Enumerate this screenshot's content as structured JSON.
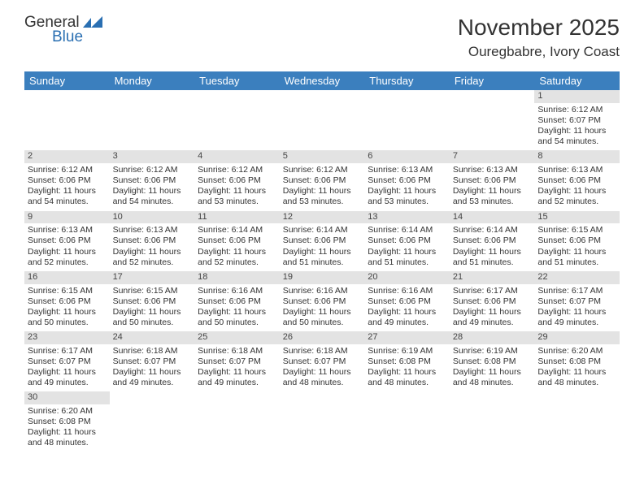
{
  "brand": {
    "general": "General",
    "blue": "Blue"
  },
  "title": "November 2025",
  "location": "Ouregbabre, Ivory Coast",
  "colors": {
    "header_bg": "#3b7fbe",
    "header_text": "#ffffff",
    "daynum_bg": "#e3e3e3",
    "text": "#333333",
    "logo_blue": "#2a6fb2"
  },
  "day_names": [
    "Sunday",
    "Monday",
    "Tuesday",
    "Wednesday",
    "Thursday",
    "Friday",
    "Saturday"
  ],
  "weeks": [
    [
      {
        "n": "",
        "lines": []
      },
      {
        "n": "",
        "lines": []
      },
      {
        "n": "",
        "lines": []
      },
      {
        "n": "",
        "lines": []
      },
      {
        "n": "",
        "lines": []
      },
      {
        "n": "",
        "lines": []
      },
      {
        "n": "1",
        "lines": [
          "Sunrise: 6:12 AM",
          "Sunset: 6:07 PM",
          "Daylight: 11 hours",
          "and 54 minutes."
        ]
      }
    ],
    [
      {
        "n": "2",
        "lines": [
          "Sunrise: 6:12 AM",
          "Sunset: 6:06 PM",
          "Daylight: 11 hours",
          "and 54 minutes."
        ]
      },
      {
        "n": "3",
        "lines": [
          "Sunrise: 6:12 AM",
          "Sunset: 6:06 PM",
          "Daylight: 11 hours",
          "and 54 minutes."
        ]
      },
      {
        "n": "4",
        "lines": [
          "Sunrise: 6:12 AM",
          "Sunset: 6:06 PM",
          "Daylight: 11 hours",
          "and 53 minutes."
        ]
      },
      {
        "n": "5",
        "lines": [
          "Sunrise: 6:12 AM",
          "Sunset: 6:06 PM",
          "Daylight: 11 hours",
          "and 53 minutes."
        ]
      },
      {
        "n": "6",
        "lines": [
          "Sunrise: 6:13 AM",
          "Sunset: 6:06 PM",
          "Daylight: 11 hours",
          "and 53 minutes."
        ]
      },
      {
        "n": "7",
        "lines": [
          "Sunrise: 6:13 AM",
          "Sunset: 6:06 PM",
          "Daylight: 11 hours",
          "and 53 minutes."
        ]
      },
      {
        "n": "8",
        "lines": [
          "Sunrise: 6:13 AM",
          "Sunset: 6:06 PM",
          "Daylight: 11 hours",
          "and 52 minutes."
        ]
      }
    ],
    [
      {
        "n": "9",
        "lines": [
          "Sunrise: 6:13 AM",
          "Sunset: 6:06 PM",
          "Daylight: 11 hours",
          "and 52 minutes."
        ]
      },
      {
        "n": "10",
        "lines": [
          "Sunrise: 6:13 AM",
          "Sunset: 6:06 PM",
          "Daylight: 11 hours",
          "and 52 minutes."
        ]
      },
      {
        "n": "11",
        "lines": [
          "Sunrise: 6:14 AM",
          "Sunset: 6:06 PM",
          "Daylight: 11 hours",
          "and 52 minutes."
        ]
      },
      {
        "n": "12",
        "lines": [
          "Sunrise: 6:14 AM",
          "Sunset: 6:06 PM",
          "Daylight: 11 hours",
          "and 51 minutes."
        ]
      },
      {
        "n": "13",
        "lines": [
          "Sunrise: 6:14 AM",
          "Sunset: 6:06 PM",
          "Daylight: 11 hours",
          "and 51 minutes."
        ]
      },
      {
        "n": "14",
        "lines": [
          "Sunrise: 6:14 AM",
          "Sunset: 6:06 PM",
          "Daylight: 11 hours",
          "and 51 minutes."
        ]
      },
      {
        "n": "15",
        "lines": [
          "Sunrise: 6:15 AM",
          "Sunset: 6:06 PM",
          "Daylight: 11 hours",
          "and 51 minutes."
        ]
      }
    ],
    [
      {
        "n": "16",
        "lines": [
          "Sunrise: 6:15 AM",
          "Sunset: 6:06 PM",
          "Daylight: 11 hours",
          "and 50 minutes."
        ]
      },
      {
        "n": "17",
        "lines": [
          "Sunrise: 6:15 AM",
          "Sunset: 6:06 PM",
          "Daylight: 11 hours",
          "and 50 minutes."
        ]
      },
      {
        "n": "18",
        "lines": [
          "Sunrise: 6:16 AM",
          "Sunset: 6:06 PM",
          "Daylight: 11 hours",
          "and 50 minutes."
        ]
      },
      {
        "n": "19",
        "lines": [
          "Sunrise: 6:16 AM",
          "Sunset: 6:06 PM",
          "Daylight: 11 hours",
          "and 50 minutes."
        ]
      },
      {
        "n": "20",
        "lines": [
          "Sunrise: 6:16 AM",
          "Sunset: 6:06 PM",
          "Daylight: 11 hours",
          "and 49 minutes."
        ]
      },
      {
        "n": "21",
        "lines": [
          "Sunrise: 6:17 AM",
          "Sunset: 6:06 PM",
          "Daylight: 11 hours",
          "and 49 minutes."
        ]
      },
      {
        "n": "22",
        "lines": [
          "Sunrise: 6:17 AM",
          "Sunset: 6:07 PM",
          "Daylight: 11 hours",
          "and 49 minutes."
        ]
      }
    ],
    [
      {
        "n": "23",
        "lines": [
          "Sunrise: 6:17 AM",
          "Sunset: 6:07 PM",
          "Daylight: 11 hours",
          "and 49 minutes."
        ]
      },
      {
        "n": "24",
        "lines": [
          "Sunrise: 6:18 AM",
          "Sunset: 6:07 PM",
          "Daylight: 11 hours",
          "and 49 minutes."
        ]
      },
      {
        "n": "25",
        "lines": [
          "Sunrise: 6:18 AM",
          "Sunset: 6:07 PM",
          "Daylight: 11 hours",
          "and 49 minutes."
        ]
      },
      {
        "n": "26",
        "lines": [
          "Sunrise: 6:18 AM",
          "Sunset: 6:07 PM",
          "Daylight: 11 hours",
          "and 48 minutes."
        ]
      },
      {
        "n": "27",
        "lines": [
          "Sunrise: 6:19 AM",
          "Sunset: 6:08 PM",
          "Daylight: 11 hours",
          "and 48 minutes."
        ]
      },
      {
        "n": "28",
        "lines": [
          "Sunrise: 6:19 AM",
          "Sunset: 6:08 PM",
          "Daylight: 11 hours",
          "and 48 minutes."
        ]
      },
      {
        "n": "29",
        "lines": [
          "Sunrise: 6:20 AM",
          "Sunset: 6:08 PM",
          "Daylight: 11 hours",
          "and 48 minutes."
        ]
      }
    ],
    [
      {
        "n": "30",
        "lines": [
          "Sunrise: 6:20 AM",
          "Sunset: 6:08 PM",
          "Daylight: 11 hours",
          "and 48 minutes."
        ]
      },
      {
        "n": "",
        "lines": []
      },
      {
        "n": "",
        "lines": []
      },
      {
        "n": "",
        "lines": []
      },
      {
        "n": "",
        "lines": []
      },
      {
        "n": "",
        "lines": []
      },
      {
        "n": "",
        "lines": []
      }
    ]
  ]
}
